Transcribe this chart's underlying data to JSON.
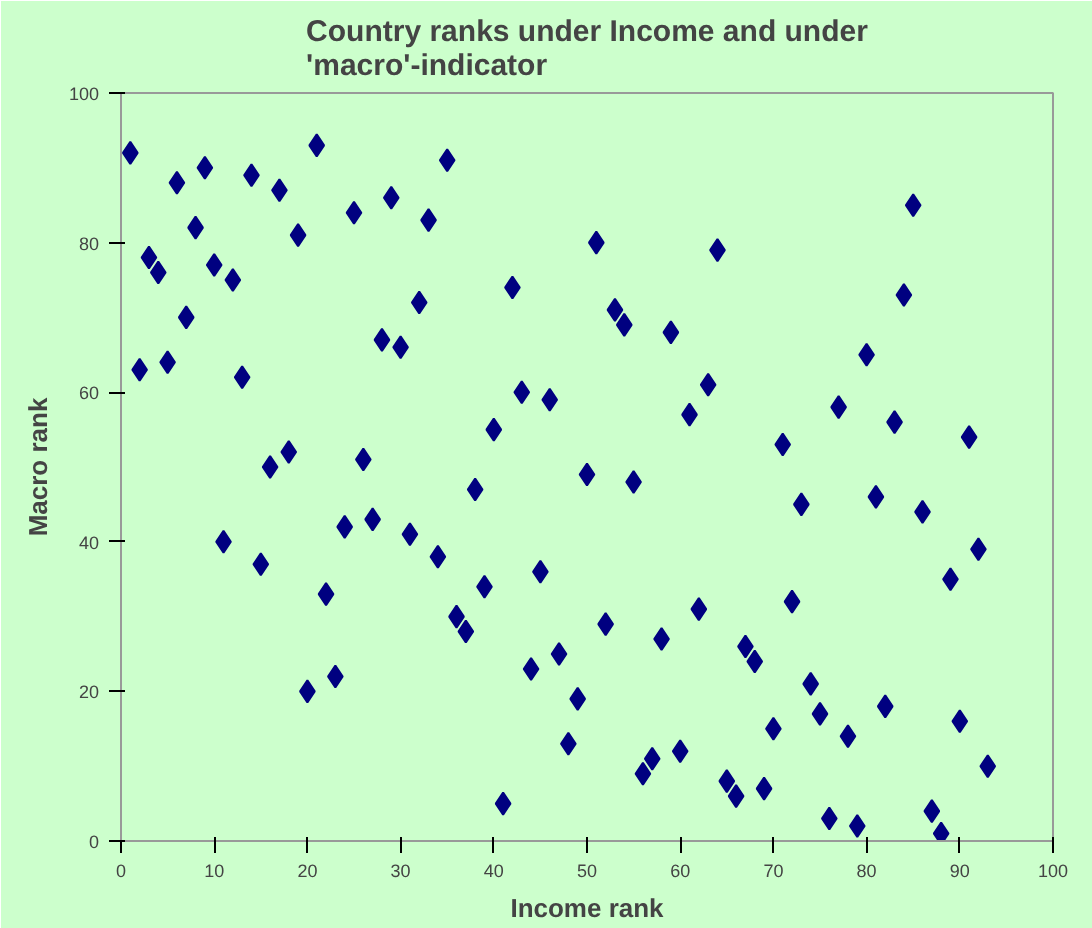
{
  "chart_data": {
    "type": "scatter",
    "title": "Country ranks under Income and under 'macro'-indicator",
    "xlabel": "Income rank",
    "ylabel": "Macro rank",
    "x": [
      1,
      2,
      3,
      4,
      5,
      6,
      7,
      8,
      9,
      10,
      11,
      12,
      13,
      14,
      15,
      16,
      17,
      18,
      19,
      20,
      21,
      22,
      23,
      24,
      25,
      26,
      27,
      28,
      29,
      30,
      31,
      32,
      33,
      34,
      35,
      36,
      37,
      38,
      39,
      40,
      41,
      42,
      43,
      44,
      45,
      46,
      47,
      48,
      49,
      50,
      51,
      52,
      53,
      54,
      55,
      56,
      57,
      58,
      59,
      60,
      61,
      62,
      63,
      64,
      65,
      66,
      67,
      68,
      69,
      70,
      71,
      72,
      73,
      74,
      75,
      76,
      77,
      78,
      79,
      80,
      81,
      82,
      83,
      84,
      85,
      86,
      87,
      88,
      89,
      90,
      91,
      92,
      93
    ],
    "series": [
      {
        "color": "#000080",
        "values": [
          92,
          63,
          78,
          76,
          64,
          88,
          70,
          82,
          90,
          77,
          40,
          75,
          62,
          89,
          37,
          50,
          87,
          52,
          81,
          20,
          93,
          33,
          22,
          42,
          84,
          51,
          43,
          67,
          86,
          66,
          41,
          72,
          83,
          38,
          91,
          30,
          28,
          47,
          34,
          55,
          5,
          74,
          60,
          23,
          36,
          59,
          25,
          13,
          19,
          49,
          80,
          29,
          71,
          69,
          48,
          9,
          11,
          27,
          68,
          12,
          57,
          31,
          61,
          79,
          8,
          6,
          26,
          24,
          7,
          15,
          53,
          32,
          45,
          21,
          17,
          3,
          58,
          14,
          2,
          65,
          46,
          18,
          56,
          73,
          85,
          44,
          4,
          1,
          35,
          16,
          54,
          39,
          10
        ]
      }
    ],
    "xlim": [
      0,
      100
    ],
    "ylim": [
      0,
      100
    ],
    "xticks": [
      0,
      10,
      20,
      30,
      40,
      50,
      60,
      70,
      80,
      90,
      100
    ],
    "yticks": [
      0,
      20,
      40,
      60,
      80,
      100
    ],
    "grid": false,
    "marker": "diamond"
  }
}
